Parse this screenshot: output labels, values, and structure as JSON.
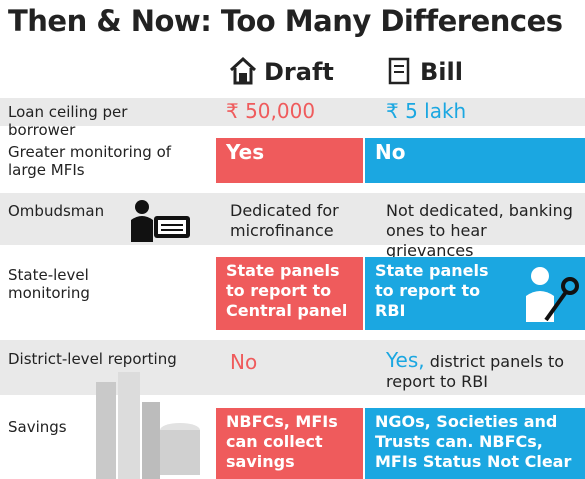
{
  "header": {
    "title": "Then & Now: Too Many Differences",
    "columns": [
      "Draft",
      "Bill"
    ]
  },
  "rows": [
    {
      "label": "Loan ceiling per borrower",
      "draft": "₹ 50,000",
      "bill": "₹ 5 lakh"
    },
    {
      "label": "Greater monitoring of large MFIs",
      "draft": "Yes",
      "bill": "No"
    },
    {
      "label": "Ombudsman",
      "draft": "Dedicated for microfinance",
      "bill": "Not dedicated, banking ones to hear grievances"
    },
    {
      "label": "State-level monitoring",
      "draft": "State panels to report to Central panel",
      "bill": "State panels to report to RBI"
    },
    {
      "label": "District-level reporting",
      "draft": "No",
      "bill": {
        "emphasis": "Yes,",
        "text": "district panels to report to RBI"
      }
    },
    {
      "label": "Savings",
      "draft": "NBFCs, MFIs can collect savings",
      "bill": "NGOs, Societies and Trusts can. NBFCs, MFIs Status Not Clear"
    }
  ]
}
